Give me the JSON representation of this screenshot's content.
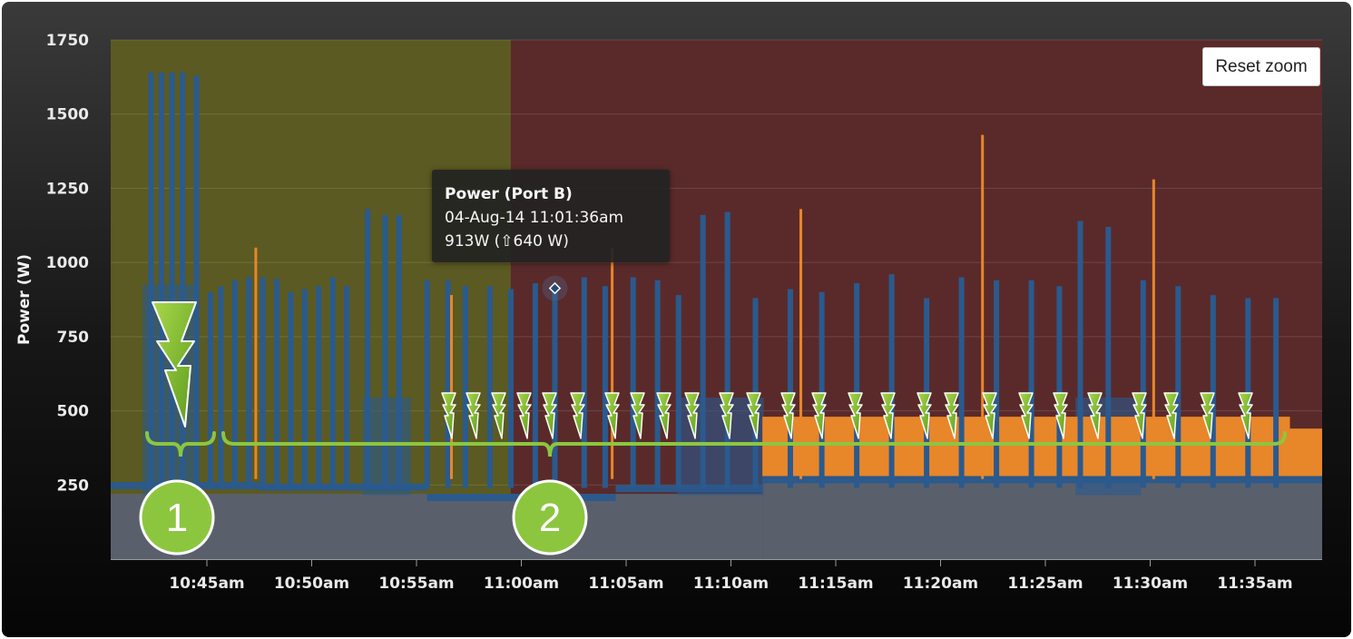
{
  "chart_data": {
    "type": "area",
    "ylabel": "Power (W)",
    "ylim": [
      0,
      1750
    ],
    "y_ticks": [
      250,
      500,
      750,
      1000,
      1250,
      1500,
      1750
    ],
    "x_range": [
      "10:40am",
      "11:39am"
    ],
    "x_ticks": [
      "10:45am",
      "10:50am",
      "10:55am",
      "11:00am",
      "11:05am",
      "11:10am",
      "11:15am",
      "11:20am",
      "11:25am",
      "11:30am",
      "11:35am"
    ],
    "grid": true,
    "bands": [
      {
        "from": "10:40am",
        "to": "10:59:30am",
        "color": "#5b5a22"
      },
      {
        "from": "10:59:30am",
        "to": "11:39am",
        "color": "#5a2a2a"
      }
    ],
    "series": [
      {
        "color": "#5a606b",
        "base_level": [
          {
            "from": "10:40am",
            "to": "11:11:30am",
            "value": 220
          },
          {
            "from": "11:11:30am",
            "to": "11:39am",
            "value": 270
          }
        ]
      },
      {
        "color": "#2a5a8e",
        "base_level": [
          {
            "from": "10:40am",
            "to": "10:47:30am",
            "value": 260
          },
          {
            "from": "10:47:30am",
            "to": "10:55:30am",
            "value": 255
          },
          {
            "from": "10:55:30am",
            "to": "11:04:30am",
            "value": 220
          },
          {
            "from": "11:04:30am",
            "to": "11:11:30am",
            "value": 250
          },
          {
            "from": "11:11:30am",
            "to": "11:39am",
            "value": 280
          }
        ],
        "plateaus": [
          {
            "from": "10:42am",
            "to": "10:44:20am",
            "value": 920
          },
          {
            "from": "10:52:30am",
            "to": "10:54:40am",
            "value": 540
          },
          {
            "from": "11:07:30am",
            "to": "11:11:30am",
            "value": 540
          },
          {
            "from": "11:26:30am",
            "to": "11:29:30am",
            "value": 540
          }
        ],
        "spikes": [
          {
            "t": "10:42:20am",
            "value": 1640
          },
          {
            "t": "10:42:50am",
            "value": 1640
          },
          {
            "t": "10:43:20am",
            "value": 1640
          },
          {
            "t": "10:43:50am",
            "value": 1640
          },
          {
            "t": "10:44:30am",
            "value": 1630
          },
          {
            "t": "10:45:10am",
            "value": 900
          },
          {
            "t": "10:45:40am",
            "value": 920
          },
          {
            "t": "10:46:20am",
            "value": 940
          },
          {
            "t": "10:47:00am",
            "value": 950
          },
          {
            "t": "10:47:40am",
            "value": 950
          },
          {
            "t": "10:48:20am",
            "value": 945
          },
          {
            "t": "10:49:00am",
            "value": 900
          },
          {
            "t": "10:49:40am",
            "value": 910
          },
          {
            "t": "10:50:20am",
            "value": 920
          },
          {
            "t": "10:51:00am",
            "value": 950
          },
          {
            "t": "10:51:40am",
            "value": 920
          },
          {
            "t": "10:52:40am",
            "value": 1180
          },
          {
            "t": "10:53:30am",
            "value": 1160
          },
          {
            "t": "10:54:10am",
            "value": 1160
          },
          {
            "t": "10:55:30am",
            "value": 940
          },
          {
            "t": "10:56:30am",
            "value": 940
          },
          {
            "t": "10:57:20am",
            "value": 920
          },
          {
            "t": "10:58:30am",
            "value": 920
          },
          {
            "t": "10:59:30am",
            "value": 910
          },
          {
            "t": "11:00:40am",
            "value": 930
          },
          {
            "t": "11:01:36am",
            "value": 913
          },
          {
            "t": "11:03:00am",
            "value": 950
          },
          {
            "t": "11:04:00am",
            "value": 920
          },
          {
            "t": "11:05:20am",
            "value": 950
          },
          {
            "t": "11:06:30am",
            "value": 940
          },
          {
            "t": "11:07:30am",
            "value": 890
          },
          {
            "t": "11:08:40am",
            "value": 1160
          },
          {
            "t": "11:09:50am",
            "value": 1170
          },
          {
            "t": "11:11:10am",
            "value": 880
          },
          {
            "t": "11:12:50am",
            "value": 910
          },
          {
            "t": "11:14:20am",
            "value": 900
          },
          {
            "t": "11:16:00am",
            "value": 930
          },
          {
            "t": "11:17:40am",
            "value": 960
          },
          {
            "t": "11:19:20am",
            "value": 880
          },
          {
            "t": "11:21:00am",
            "value": 950
          },
          {
            "t": "11:22:40am",
            "value": 940
          },
          {
            "t": "11:24:20am",
            "value": 940
          },
          {
            "t": "11:25:40am",
            "value": 920
          },
          {
            "t": "11:26:40am",
            "value": 1140
          },
          {
            "t": "11:28:00am",
            "value": 1120
          },
          {
            "t": "11:29:40am",
            "value": 940
          },
          {
            "t": "11:31:20am",
            "value": 920
          },
          {
            "t": "11:33:00am",
            "value": 890
          },
          {
            "t": "11:34:40am",
            "value": 880
          },
          {
            "t": "11:36:00am",
            "value": 880
          }
        ]
      },
      {
        "color": "#e8862a",
        "plateaus": [
          {
            "from": "11:11:30am",
            "to": "11:36:40am",
            "value": 480
          }
        ],
        "spikes": [
          {
            "t": "10:47:20am",
            "value": 1050
          },
          {
            "t": "10:56:40am",
            "value": 890
          },
          {
            "t": "11:04:20am",
            "value": 1050
          },
          {
            "t": "11:13:20am",
            "value": 1180
          },
          {
            "t": "11:22:00am",
            "value": 1430
          },
          {
            "t": "11:30:10am",
            "value": 1280
          }
        ]
      }
    ],
    "tooltip": {
      "title": "Power (Port B)",
      "time": "04-Aug-14 11:01:36am",
      "value": "913W (⇧640 W)"
    },
    "annotations": {
      "bracket_labels": [
        "1",
        "2"
      ],
      "lightning_icon": "lightning-bolt-icon"
    }
  },
  "reset_zoom_label": "Reset zoom"
}
